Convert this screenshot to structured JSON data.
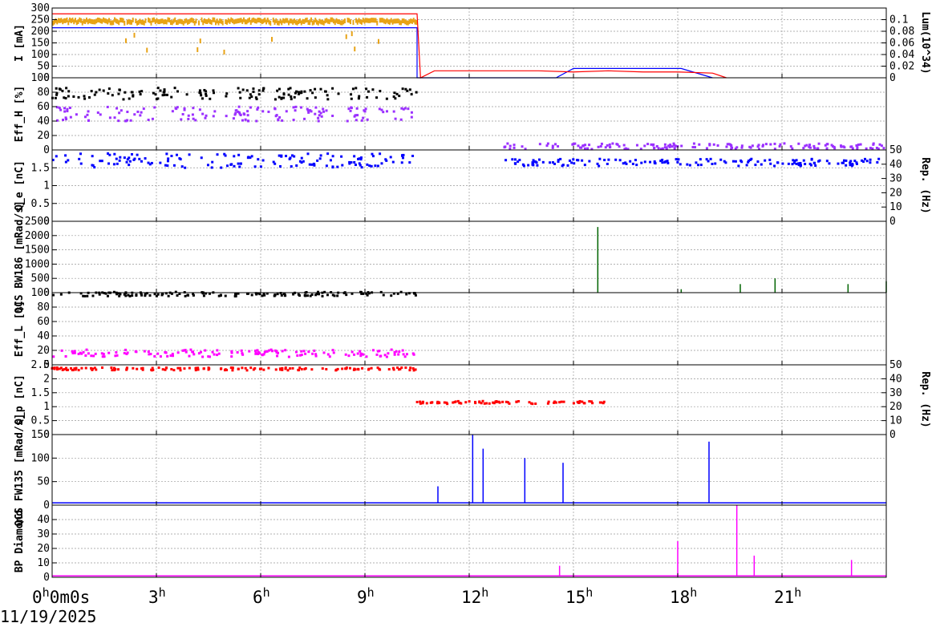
{
  "date_label": "11/19/2025",
  "x_axis": {
    "range_hours": [
      0,
      24
    ],
    "ticks": [
      {
        "h": 0,
        "base": "0",
        "sup": "h",
        "extra": "0m0s"
      },
      {
        "h": 3,
        "base": "3",
        "sup": "h"
      },
      {
        "h": 6,
        "base": "6",
        "sup": "h"
      },
      {
        "h": 9,
        "base": "9",
        "sup": "h"
      },
      {
        "h": 12,
        "base": "12",
        "sup": "h"
      },
      {
        "h": 15,
        "base": "15",
        "sup": "h"
      },
      {
        "h": 18,
        "base": "18",
        "sup": "h"
      },
      {
        "h": 21,
        "base": "21",
        "sup": "h"
      }
    ]
  },
  "colors": {
    "orange": "#e8a317",
    "red": "#ff0000",
    "blue": "#0000ff",
    "navy": "#0000cc",
    "black": "#000000",
    "purple": "#9b30ff",
    "green": "#006400",
    "magenta": "#ff00ff"
  },
  "chart_data": [
    {
      "type": "line",
      "ylabel": "I [mA]",
      "ylim": [
        0,
        300
      ],
      "yticks": [
        0,
        50,
        100,
        150,
        200,
        250,
        300
      ],
      "right_axis": {
        "label": "Lum(10^34)",
        "ylim": [
          0,
          0.12
        ],
        "ticks": [
          0,
          0.02,
          0.04,
          0.06,
          0.08,
          0.1
        ]
      },
      "series": [
        {
          "color": "#e8a317",
          "style": "band",
          "x": [
            0,
            10.5
          ],
          "y": [
            235,
            250
          ],
          "dips_to": 110
        },
        {
          "color": "#0000ff",
          "style": "line",
          "x": [
            0,
            10.5,
            10.5,
            13,
            14.5,
            15,
            15.2,
            16.5,
            17.5,
            18,
            18.1,
            19
          ],
          "y": [
            215,
            215,
            0,
            0,
            0,
            40,
            40,
            40,
            40,
            40,
            40,
            0
          ]
        },
        {
          "color": "#ff0000",
          "style": "line",
          "x": [
            0,
            10.5,
            10.6,
            11,
            12,
            13,
            14,
            15,
            16,
            17,
            18,
            19,
            19.4
          ],
          "y": [
            275,
            275,
            0,
            30,
            30,
            30,
            30,
            25,
            30,
            25,
            25,
            20,
            0
          ]
        }
      ]
    },
    {
      "type": "scatter",
      "ylabel": "Eff_H [%]",
      "ylim": [
        0,
        100
      ],
      "yticks": [
        0,
        20,
        40,
        60,
        80,
        100
      ],
      "series": [
        {
          "color": "#000000",
          "x_range": [
            0,
            10.5
          ],
          "y_center": 78,
          "y_spread": 8
        },
        {
          "color": "#9b30ff",
          "x_range": [
            0,
            10.5
          ],
          "y_center": 50,
          "y_spread": 10
        },
        {
          "color": "#9b30ff",
          "x_range": [
            13,
            24
          ],
          "y_center": 5,
          "y_spread": 4
        }
      ]
    },
    {
      "type": "scatter",
      "ylabel": "Q_e [nC]",
      "ylim": [
        0,
        2
      ],
      "yticks": [
        0,
        0.5,
        1,
        1.5
      ],
      "right_axis": {
        "label": "Rep. (Hz)",
        "ylim": [
          0,
          50
        ],
        "ticks": [
          0,
          10,
          20,
          30,
          40,
          50
        ]
      },
      "series": [
        {
          "color": "#0000ff",
          "x_range": [
            0,
            10.5
          ],
          "y_center": 1.7,
          "y_spread": 0.2
        },
        {
          "color": "#0000ff",
          "x_range": [
            13,
            24
          ],
          "y_center": 1.65,
          "y_spread": 0.1
        }
      ]
    },
    {
      "type": "line",
      "ylabel": "QCS BW186 [mRad/s]",
      "ylim": [
        0,
        2500
      ],
      "yticks": [
        0,
        500,
        1000,
        1500,
        2000,
        2500
      ],
      "series": [
        {
          "color": "#006400",
          "spikes": [
            [
              15.7,
              2300
            ],
            [
              18.1,
              120
            ],
            [
              19.8,
              300
            ],
            [
              20.8,
              500
            ],
            [
              22.9,
              300
            ],
            [
              24,
              400
            ]
          ]
        }
      ]
    },
    {
      "type": "scatter",
      "ylabel": "Eff_L [%]",
      "ylim": [
        0,
        100
      ],
      "yticks": [
        0,
        20,
        40,
        60,
        80,
        100
      ],
      "series": [
        {
          "color": "#000000",
          "x_range": [
            0,
            10.5
          ],
          "y_center": 98,
          "y_spread": 3
        },
        {
          "color": "#ff00ff",
          "x_range": [
            0,
            10.5
          ],
          "y_center": 16,
          "y_spread": 5
        }
      ]
    },
    {
      "type": "scatter",
      "ylabel": "Q_p [nC]",
      "ylim": [
        0,
        2.5
      ],
      "yticks": [
        0,
        0.5,
        1,
        1.5,
        2,
        2.5
      ],
      "right_axis": {
        "label": "Rep. (Hz)",
        "ylim": [
          0,
          50
        ],
        "ticks": [
          0,
          10,
          20,
          30,
          40,
          50
        ]
      },
      "series": [
        {
          "color": "#ff0000",
          "x_range": [
            0,
            10.5
          ],
          "y_center": 2.35,
          "y_spread": 0.05
        },
        {
          "color": "#ff0000",
          "x_range": [
            10.5,
            16
          ],
          "y_center": 1.15,
          "y_spread": 0.05
        }
      ]
    },
    {
      "type": "line",
      "ylabel": "QCS FW135 [mRad/s]",
      "ylim": [
        0,
        150
      ],
      "yticks": [
        0,
        50,
        100,
        150
      ],
      "series": [
        {
          "color": "#0000ff",
          "baseline": 5,
          "spikes": [
            [
              11.1,
              40
            ],
            [
              12.1,
              180
            ],
            [
              12.4,
              120
            ],
            [
              13.6,
              100
            ],
            [
              14.7,
              90
            ],
            [
              18.9,
              135
            ]
          ]
        }
      ]
    },
    {
      "type": "line",
      "ylabel": "BP Diamond",
      "ylim": [
        0,
        50
      ],
      "yticks": [
        0,
        10,
        20,
        30,
        40
      ],
      "series": [
        {
          "color": "#ff00ff",
          "baseline": 1,
          "spikes": [
            [
              14.6,
              8
            ],
            [
              18,
              25
            ],
            [
              19.7,
              50
            ],
            [
              20.2,
              15
            ],
            [
              23,
              12
            ]
          ]
        }
      ]
    }
  ]
}
